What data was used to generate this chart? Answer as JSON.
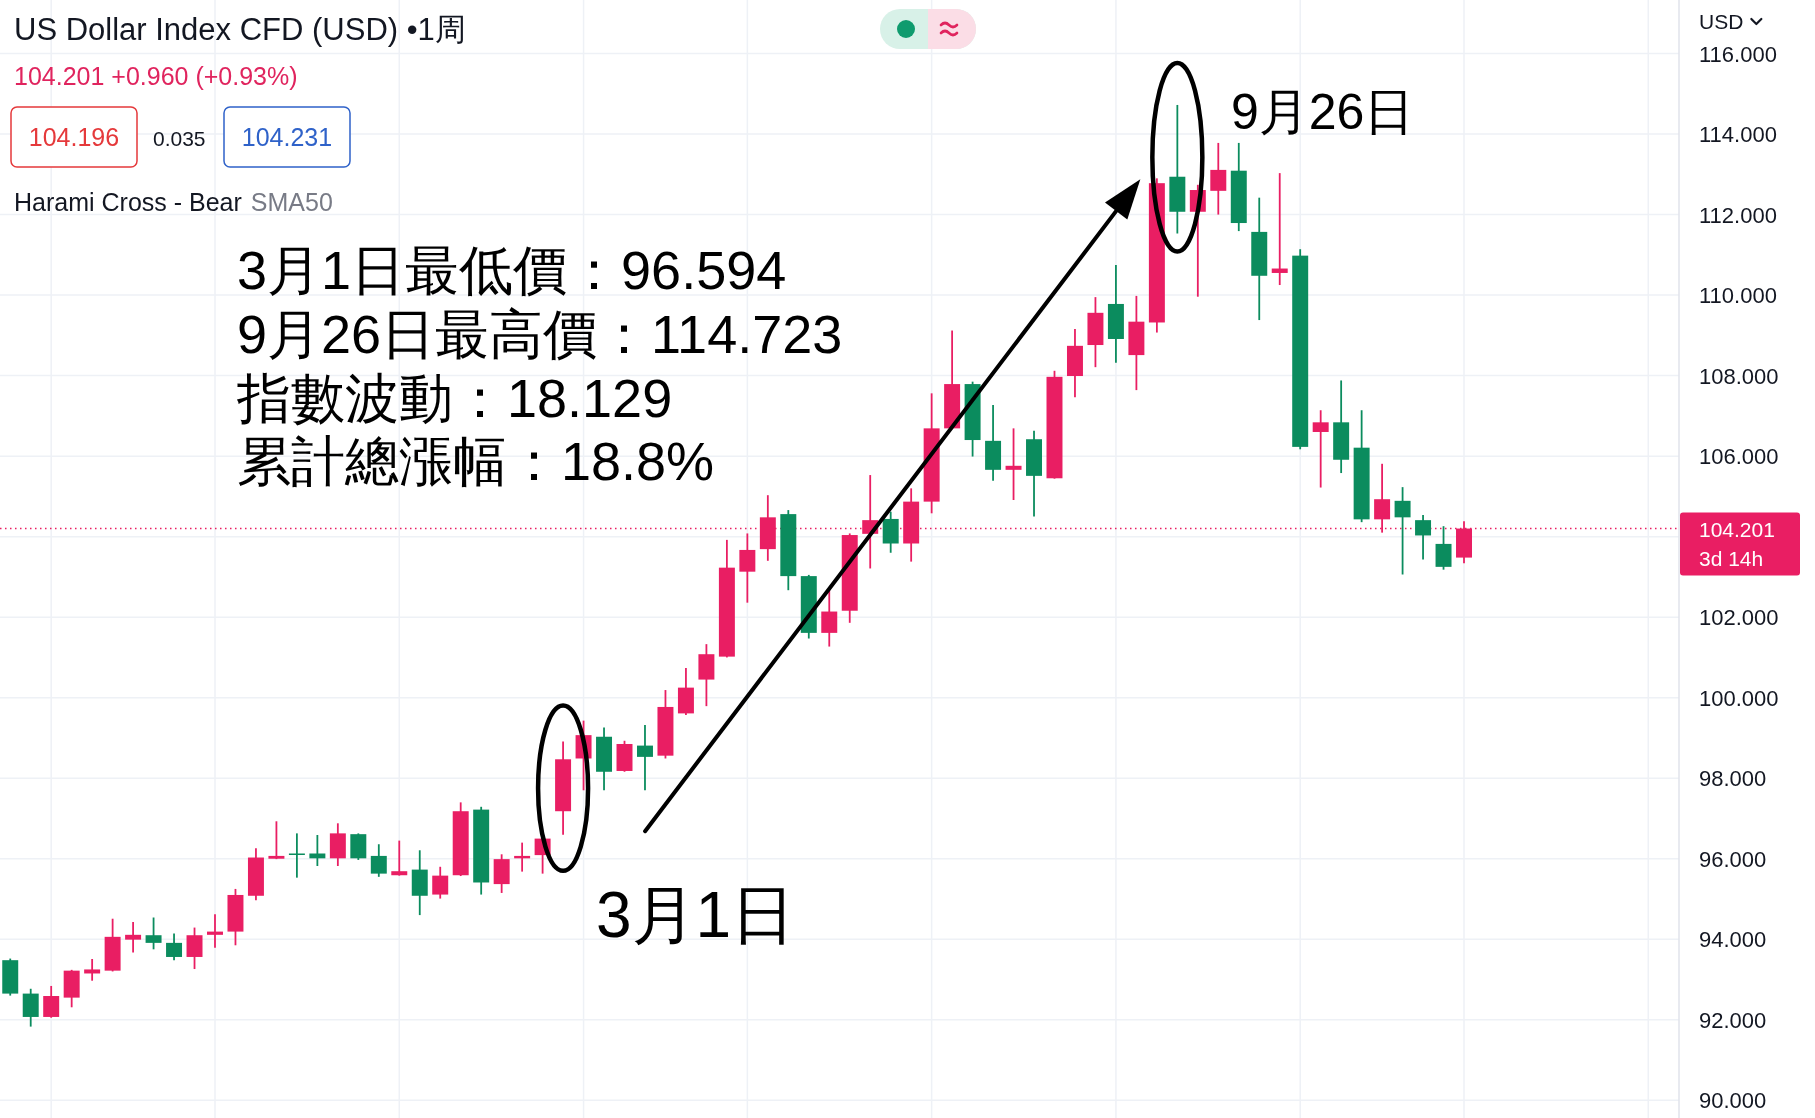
{
  "chart_data": {
    "type": "candlestick",
    "title": "US Dollar Index CFD (USD) •1周",
    "subtitle": "104.201 +0.960 (+0.93%)",
    "ylabel": "USD",
    "categories": [
      null,
      null,
      null,
      null,
      null,
      null,
      null,
      null,
      null,
      null,
      null,
      null,
      null,
      null,
      null,
      null,
      null,
      null,
      null,
      null,
      null,
      null,
      null,
      null,
      null,
      null,
      null,
      null,
      null,
      null,
      null,
      null,
      null,
      null,
      null,
      null,
      null,
      null,
      null,
      null,
      null,
      null,
      null,
      null,
      null,
      null,
      null,
      null,
      null,
      null,
      null,
      null,
      null,
      null,
      null,
      null,
      null,
      null,
      null,
      null,
      null,
      null,
      null,
      null,
      null,
      null,
      null,
      null,
      null,
      null,
      null,
      null,
      null,
      null,
      null,
      null,
      null,
      null,
      null,
      null,
      null,
      null
    ],
    "ohlc": [
      [
        93.48,
        93.52,
        92.6,
        92.65
      ],
      [
        92.65,
        92.77,
        91.83,
        92.07
      ],
      [
        92.07,
        92.84,
        92.05,
        92.59
      ],
      [
        92.55,
        93.24,
        92.31,
        93.22
      ],
      [
        93.15,
        93.51,
        92.97,
        93.25
      ],
      [
        93.22,
        94.51,
        93.2,
        94.06
      ],
      [
        93.99,
        94.43,
        93.67,
        94.11
      ],
      [
        94.1,
        94.54,
        93.75,
        93.91
      ],
      [
        93.91,
        94.14,
        93.48,
        93.56
      ],
      [
        93.56,
        94.29,
        93.26,
        94.1
      ],
      [
        94.11,
        94.62,
        93.79,
        94.19
      ],
      [
        94.19,
        95.25,
        93.85,
        95.1
      ],
      [
        95.08,
        96.26,
        94.97,
        96.03
      ],
      [
        96.0,
        96.93,
        95.99,
        96.07
      ],
      [
        96.13,
        96.63,
        95.53,
        96.11
      ],
      [
        96.13,
        96.59,
        95.82,
        96.01
      ],
      [
        96.01,
        96.88,
        95.82,
        96.63
      ],
      [
        96.61,
        96.63,
        95.97,
        96.01
      ],
      [
        96.07,
        96.36,
        95.55,
        95.63
      ],
      [
        95.59,
        96.45,
        95.58,
        95.69
      ],
      [
        95.73,
        96.21,
        94.6,
        95.08
      ],
      [
        95.11,
        95.8,
        95.01,
        95.58
      ],
      [
        95.59,
        97.4,
        95.57,
        97.18
      ],
      [
        97.22,
        97.29,
        95.11,
        95.41
      ],
      [
        95.37,
        96.11,
        95.15,
        95.99
      ],
      [
        96.01,
        96.4,
        95.68,
        96.07
      ],
      [
        96.09,
        96.52,
        95.63,
        96.5
      ],
      [
        97.18,
        98.91,
        96.594,
        98.47
      ],
      [
        98.49,
        99.43,
        97.7,
        99.07
      ],
      [
        99.03,
        99.26,
        97.7,
        98.16
      ],
      [
        98.18,
        98.93,
        98.16,
        98.85
      ],
      [
        98.81,
        99.32,
        97.7,
        98.53
      ],
      [
        98.56,
        100.19,
        98.49,
        99.77
      ],
      [
        99.61,
        100.74,
        99.57,
        100.25
      ],
      [
        100.45,
        101.33,
        99.79,
        101.08
      ],
      [
        101.02,
        103.92,
        101.0,
        103.23
      ],
      [
        103.13,
        104.08,
        102.36,
        103.67
      ],
      [
        103.69,
        105.03,
        103.4,
        104.48
      ],
      [
        104.56,
        104.66,
        102.67,
        103.02
      ],
      [
        103.02,
        103.05,
        101.47,
        101.61
      ],
      [
        101.61,
        102.67,
        101.27,
        102.14
      ],
      [
        102.16,
        104.08,
        101.86,
        104.04
      ],
      [
        104.07,
        105.53,
        103.21,
        104.41
      ],
      [
        104.44,
        104.62,
        103.6,
        103.83
      ],
      [
        103.83,
        105.2,
        103.38,
        104.87
      ],
      [
        104.87,
        107.56,
        104.58,
        106.69
      ],
      [
        106.69,
        109.12,
        106.67,
        107.79
      ],
      [
        107.79,
        107.85,
        105.99,
        106.4
      ],
      [
        106.38,
        107.27,
        105.39,
        105.66
      ],
      [
        105.66,
        106.69,
        104.91,
        105.76
      ],
      [
        106.42,
        106.63,
        104.5,
        105.51
      ],
      [
        105.45,
        108.12,
        105.44,
        107.97
      ],
      [
        107.99,
        109.16,
        107.46,
        108.74
      ],
      [
        108.76,
        109.95,
        108.21,
        109.56
      ],
      [
        109.78,
        110.75,
        108.32,
        108.91
      ],
      [
        108.51,
        109.98,
        107.64,
        109.34
      ],
      [
        109.32,
        112.9,
        109.07,
        112.78
      ],
      [
        112.94,
        114.723,
        111.53,
        112.07
      ],
      [
        112.07,
        112.74,
        109.96,
        112.61
      ],
      [
        112.59,
        113.78,
        112.0,
        113.11
      ],
      [
        113.09,
        113.78,
        111.59,
        111.79
      ],
      [
        111.57,
        112.42,
        109.38,
        110.48
      ],
      [
        110.55,
        113.03,
        110.25,
        110.66
      ],
      [
        110.98,
        111.14,
        106.17,
        106.23
      ],
      [
        106.6,
        107.14,
        105.22,
        106.84
      ],
      [
        106.84,
        107.88,
        105.58,
        105.91
      ],
      [
        106.21,
        107.14,
        104.36,
        104.43
      ],
      [
        104.43,
        105.81,
        104.1,
        104.93
      ],
      [
        104.89,
        105.23,
        103.06,
        104.48
      ],
      [
        104.41,
        104.54,
        103.43,
        104.03
      ],
      [
        103.82,
        104.26,
        103.18,
        103.25
      ],
      [
        103.48,
        104.38,
        103.34,
        104.201
      ],
      null,
      null,
      null,
      null,
      null,
      null,
      null,
      null,
      null,
      null
    ],
    "colors": [
      "#0b8c5e",
      "#0b8c5e",
      "#e91e63",
      "#e91e63",
      "#e91e63",
      "#e91e63",
      "#e91e63",
      "#0b8c5e",
      "#0b8c5e",
      "#e91e63",
      "#e91e63",
      "#e91e63",
      "#e91e63",
      "#e91e63",
      "#0b8c5e",
      "#0b8c5e",
      "#e91e63",
      "#0b8c5e",
      "#0b8c5e",
      "#e91e63",
      "#0b8c5e",
      "#e91e63",
      "#e91e63",
      "#0b8c5e",
      "#e91e63",
      "#e91e63",
      "#e91e63",
      "#e91e63",
      "#e91e63",
      "#0b8c5e",
      "#e91e63",
      "#0b8c5e",
      "#e91e63",
      "#e91e63",
      "#e91e63",
      "#e91e63",
      "#e91e63",
      "#e91e63",
      "#0b8c5e",
      "#0b8c5e",
      "#e91e63",
      "#e91e63",
      "#e91e63",
      "#0b8c5e",
      "#e91e63",
      "#e91e63",
      "#e91e63",
      "#0b8c5e",
      "#0b8c5e",
      "#e91e63",
      "#0b8c5e",
      "#e91e63",
      "#e91e63",
      "#e91e63",
      "#0b8c5e",
      "#e91e63",
      "#e91e63",
      "#0b8c5e",
      "#e91e63",
      "#e91e63",
      "#0b8c5e",
      "#0b8c5e",
      "#e91e63",
      "#0b8c5e",
      "#e91e63",
      "#0b8c5e",
      "#0b8c5e",
      "#e91e63",
      "#0b8c5e",
      "#0b8c5e",
      "#0b8c5e",
      "#e91e63",
      null,
      null,
      null,
      null,
      null,
      null,
      null,
      null,
      null,
      null
    ],
    "ylim": [
      89.56,
      117.33
    ],
    "yticks": [
      {
        "value": 116,
        "label": "116.000"
      },
      {
        "value": 114,
        "label": "114.000"
      },
      {
        "value": 112,
        "label": "112.000"
      },
      {
        "value": 110,
        "label": "110.000"
      },
      {
        "value": 108,
        "label": "108.000"
      },
      {
        "value": 106,
        "label": "106.000"
      },
      {
        "value": 104,
        "label": null
      },
      {
        "value": 102,
        "label": "102.000"
      },
      {
        "value": 100,
        "label": "100.000"
      },
      {
        "value": 98,
        "label": "98.000"
      },
      {
        "value": 96,
        "label": "96.000"
      },
      {
        "value": 94,
        "label": "94.000"
      },
      {
        "value": 92,
        "label": "92.000"
      },
      {
        "value": 90,
        "label": "90.000"
      }
    ],
    "grid": true,
    "ref_lines": [
      {
        "axis": "y",
        "value": 104.201,
        "label": "104.201\n3d 14h",
        "color": "#e91e63",
        "line_style": "dotted"
      }
    ],
    "annotations": [
      "104.196",
      "0.035",
      "104.231",
      "Harami Cross - Bear",
      "SMA50",
      "3月1日最低價：96.594",
      "9月26日最高價：114.723",
      "指數波動：18.129",
      "累計總漲幅：18.8%",
      "3月1日",
      "9月26日"
    ]
  }
}
